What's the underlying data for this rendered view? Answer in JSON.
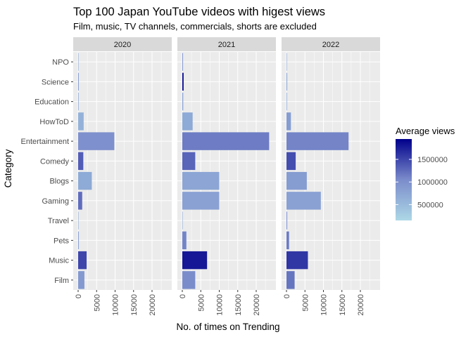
{
  "chart_data": {
    "type": "bar",
    "orientation": "horizontal",
    "title": "Top 100 Japan YouTube videos with higest views",
    "subtitle": "Film, music, TV channels, commercials, shorts are excluded",
    "xlabel": "No. of times on Trending",
    "ylabel": "Category",
    "xlim": [
      0,
      24000
    ],
    "x_ticks": [
      0,
      5000,
      10000,
      15000,
      20000
    ],
    "x_tick_labels": [
      "0",
      "5000",
      "10000",
      "15000",
      "20000"
    ],
    "categories": [
      "NPO",
      "Science",
      "Education",
      "HowToD",
      "Entertainment",
      "Comedy",
      "Blogs",
      "Gaming",
      "Travel",
      "Pets",
      "Music",
      "Film"
    ],
    "grid": true,
    "facets": [
      {
        "label": "2020",
        "values": [
          30,
          180,
          150,
          1500,
          9800,
          1400,
          3700,
          1100,
          30,
          200,
          2300,
          1700
        ],
        "avg_views": [
          700000,
          900000,
          700000,
          600000,
          1000000,
          1350000,
          700000,
          1250000,
          700000,
          800000,
          1500000,
          900000
        ]
      },
      {
        "label": "2021",
        "values": [
          200,
          350,
          250,
          2800,
          23500,
          3500,
          10000,
          10000,
          80,
          1100,
          6700,
          3500
        ],
        "avg_views": [
          900000,
          1900000,
          800000,
          700000,
          1150000,
          1300000,
          750000,
          800000,
          700000,
          1100000,
          1800000,
          1050000
        ]
      },
      {
        "label": "2022",
        "values": [
          40,
          200,
          150,
          1200,
          16800,
          2500,
          5500,
          9300,
          200,
          700,
          5800,
          2200
        ],
        "avg_views": [
          700000,
          750000,
          700000,
          850000,
          1100000,
          1450000,
          850000,
          800000,
          1000000,
          1150000,
          1600000,
          1200000
        ]
      }
    ],
    "legend": {
      "title": "Average views",
      "placement": "right",
      "ticks": [
        500000,
        1000000,
        1500000
      ],
      "tick_labels": [
        "500000",
        "1000000",
        "1500000"
      ],
      "range": [
        150000,
        1950000
      ],
      "low_color": "#add8e6",
      "mid_color": "#7b8ccb",
      "high_color": "#00008b"
    },
    "colors": {
      "panel_bg": "#ebebeb",
      "strip_bg": "#d9d9d9",
      "grid_major": "#ffffff",
      "text": "#000000",
      "axis_text": "#4d4d4d"
    }
  }
}
